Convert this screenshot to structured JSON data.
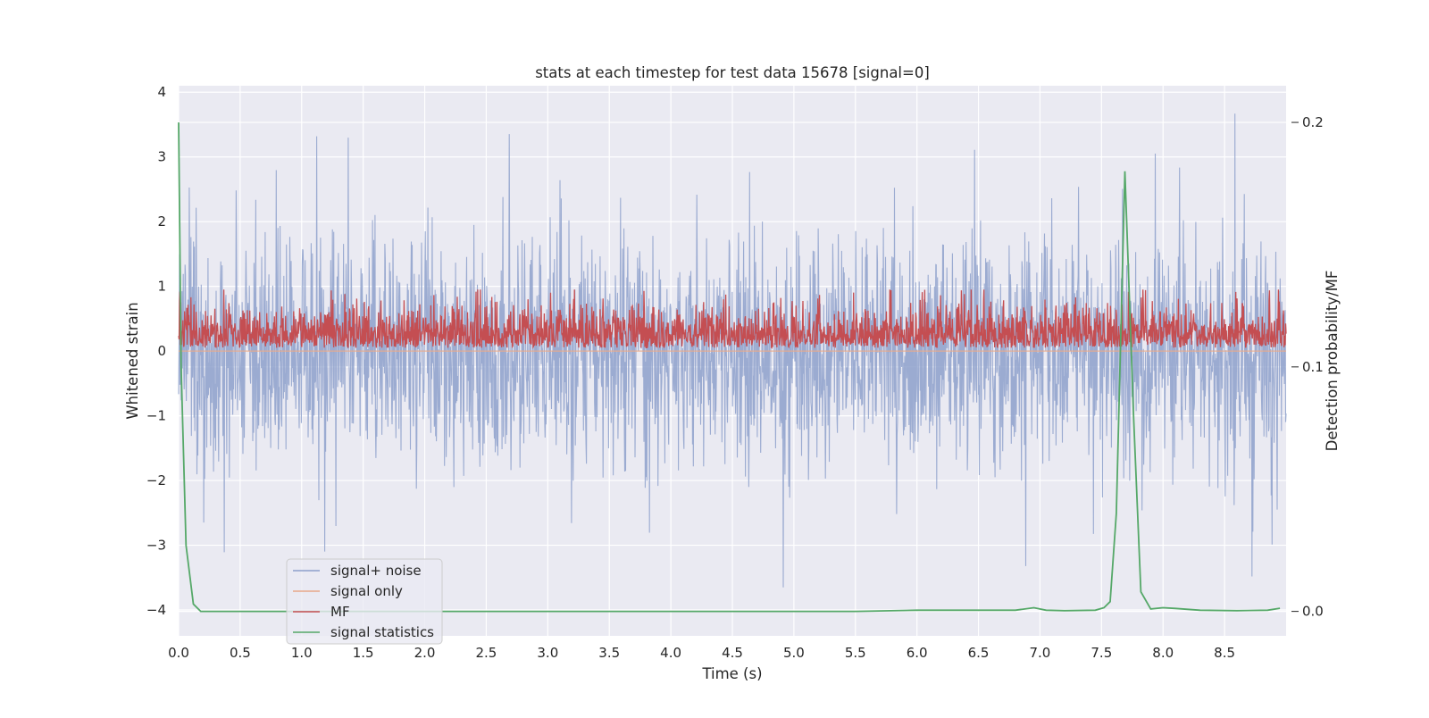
{
  "chart_data": {
    "type": "line",
    "title": "stats at each timestep for test data 15678 [signal=0]",
    "xlabel": "Time (s)",
    "ylabel": "Whitened strain",
    "ylabel_right": "Detection probability/MF",
    "xlim": [
      0.0,
      9.0
    ],
    "ylim": [
      -4.4,
      4.1
    ],
    "ylim_right": [
      -0.01,
      0.215
    ],
    "x_ticks": [
      0.0,
      0.5,
      1.0,
      1.5,
      2.0,
      2.5,
      3.0,
      3.5,
      4.0,
      4.5,
      5.0,
      5.5,
      6.0,
      6.5,
      7.0,
      7.5,
      8.0,
      8.5
    ],
    "x_tick_labels": [
      "0.0",
      "0.5",
      "1.0",
      "1.5",
      "2.0",
      "2.5",
      "3.0",
      "3.5",
      "4.0",
      "4.5",
      "5.0",
      "5.5",
      "6.0",
      "6.5",
      "7.0",
      "7.5",
      "8.0",
      "8.5"
    ],
    "y_ticks": [
      -4,
      -3,
      -2,
      -1,
      0,
      1,
      2,
      3,
      4
    ],
    "y_tick_labels": [
      "−4",
      "−3",
      "−2",
      "−1",
      "0",
      "1",
      "2",
      "3",
      "4"
    ],
    "y_ticks_right": [
      0.0,
      0.1,
      0.2
    ],
    "y_tick_labels_right": [
      "0.0",
      "0.1",
      "0.2"
    ],
    "grid": true,
    "legend_position": "lower-left",
    "series": [
      {
        "name": "signal+ noise",
        "axis": "left",
        "color": "#8da0cb",
        "style": "noise",
        "description_stats": {
          "mean": 0.0,
          "typical_peak": 2.3,
          "max": 3.7,
          "min": -3.9
        }
      },
      {
        "name": "signal only",
        "axis": "left",
        "color": "#e8a88a",
        "style": "flat",
        "values_const": 0.0
      },
      {
        "name": "MF",
        "axis": "left",
        "color": "#c44e52",
        "style": "envelope",
        "description_stats": {
          "low": 0.0,
          "typical_high": 0.6,
          "max": 0.95
        }
      },
      {
        "name": "signal statistics",
        "axis": "right",
        "color": "#55a868",
        "style": "line",
        "x": [
          0.0,
          0.02,
          0.06,
          0.12,
          0.18,
          0.25,
          0.5,
          1.0,
          2.0,
          3.0,
          4.0,
          5.0,
          5.5,
          6.0,
          6.5,
          6.8,
          6.95,
          7.05,
          7.2,
          7.45,
          7.52,
          7.57,
          7.62,
          7.69,
          7.76,
          7.82,
          7.9,
          8.0,
          8.1,
          8.3,
          8.6,
          8.85,
          8.95
        ],
        "y": [
          0.2,
          0.1,
          0.027,
          0.003,
          0.0,
          0.0,
          0.0,
          0.0,
          0.0,
          0.0,
          0.0,
          0.0,
          0.0,
          0.0005,
          0.0005,
          0.0005,
          0.0015,
          0.0005,
          0.0003,
          0.0005,
          0.0015,
          0.004,
          0.04,
          0.18,
          0.08,
          0.008,
          0.001,
          0.0015,
          0.0012,
          0.0005,
          0.0003,
          0.0005,
          0.0013
        ]
      }
    ]
  }
}
